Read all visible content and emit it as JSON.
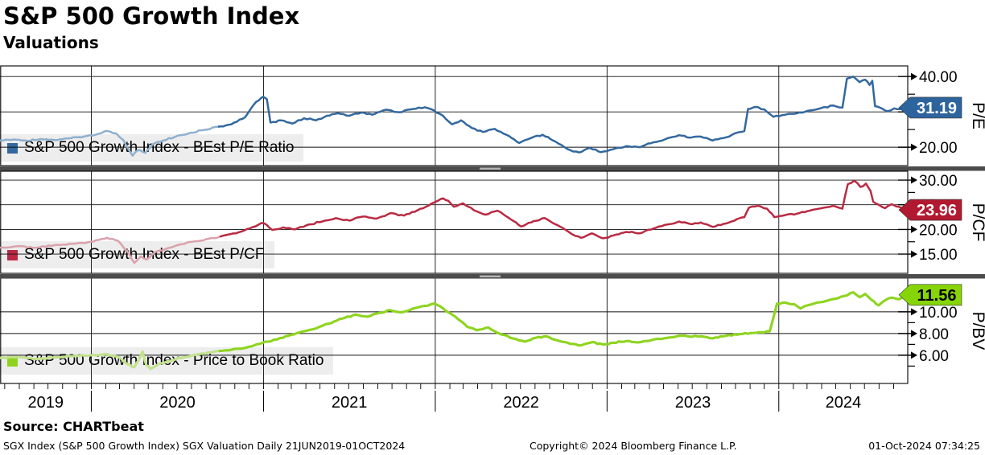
{
  "header": {
    "title": "S&P 500 Growth Index",
    "subtitle": "Valuations"
  },
  "footer": {
    "source": "Source: CHARTbeat",
    "meta_left": "SGX Index (S&P 500 Growth Index) SGX Valuation  Daily 21JUN2019-01OCT2024",
    "meta_center": "Copyright© 2024 Bloomberg Finance L.P.",
    "meta_right": "01-Oct-2024 07:34:25"
  },
  "chart_data": {
    "type": "line",
    "title": "S&P 500 Growth Index",
    "subtitle": "Valuations",
    "x_axis": {
      "range_start": "2019-06-21",
      "range_end": "2024-10-01",
      "year_labels": [
        "2019",
        "2020",
        "2021",
        "2022",
        "2023",
        "2024"
      ]
    },
    "panels": [
      {
        "id": "pe",
        "legend": "S&P 500 Growth Index - BEst P/E Ratio",
        "axis_title": "P/E",
        "last_value_label": "31.19",
        "last_value": 31.19,
        "line_color": "#33689e",
        "line_color_faded": "#8fb0cd",
        "badge_color": "#2d649e",
        "badge_text_color": "#ffffff",
        "ylim": [
          14.8,
          43.0
        ],
        "gridlines": [
          20,
          30,
          40
        ],
        "tick_labels": [
          {
            "v": 20,
            "label": "20.00"
          },
          {
            "v": 30,
            "label": "30.00"
          },
          {
            "v": 40,
            "label": "40.00"
          }
        ],
        "minor_ticks": [
          25,
          35
        ],
        "noise": 0.22,
        "series": [
          [
            0.0,
            21.9
          ],
          [
            0.015,
            22.2
          ],
          [
            0.03,
            21.8
          ],
          [
            0.045,
            22.3
          ],
          [
            0.06,
            22.0
          ],
          [
            0.075,
            22.5
          ],
          [
            0.09,
            22.8
          ],
          [
            0.105,
            23.5
          ],
          [
            0.118,
            24.6
          ],
          [
            0.128,
            23.9
          ],
          [
            0.136,
            22.0
          ],
          [
            0.146,
            17.6
          ],
          [
            0.152,
            19.2
          ],
          [
            0.16,
            18.4
          ],
          [
            0.168,
            20.8
          ],
          [
            0.18,
            21.9
          ],
          [
            0.195,
            23.2
          ],
          [
            0.21,
            24.1
          ],
          [
            0.225,
            24.9
          ],
          [
            0.24,
            25.8
          ],
          [
            0.255,
            26.5
          ],
          [
            0.27,
            28.5
          ],
          [
            0.282,
            32.8
          ],
          [
            0.29,
            34.3
          ],
          [
            0.294,
            33.6
          ],
          [
            0.298,
            27.0
          ],
          [
            0.31,
            27.6
          ],
          [
            0.322,
            26.7
          ],
          [
            0.335,
            28.2
          ],
          [
            0.348,
            27.6
          ],
          [
            0.36,
            28.9
          ],
          [
            0.372,
            29.6
          ],
          [
            0.385,
            28.9
          ],
          [
            0.398,
            29.8
          ],
          [
            0.41,
            29.2
          ],
          [
            0.425,
            30.6
          ],
          [
            0.44,
            29.9
          ],
          [
            0.455,
            30.8
          ],
          [
            0.468,
            31.3
          ],
          [
            0.478,
            30.4
          ],
          [
            0.488,
            28.9
          ],
          [
            0.498,
            26.5
          ],
          [
            0.508,
            27.6
          ],
          [
            0.52,
            25.4
          ],
          [
            0.532,
            24.3
          ],
          [
            0.545,
            25.2
          ],
          [
            0.558,
            23.5
          ],
          [
            0.572,
            21.2
          ],
          [
            0.585,
            22.6
          ],
          [
            0.598,
            23.5
          ],
          [
            0.612,
            21.6
          ],
          [
            0.625,
            19.5
          ],
          [
            0.638,
            18.5
          ],
          [
            0.65,
            19.8
          ],
          [
            0.662,
            18.6
          ],
          [
            0.675,
            19.4
          ],
          [
            0.69,
            20.3
          ],
          [
            0.705,
            20.0
          ],
          [
            0.72,
            21.4
          ],
          [
            0.735,
            22.5
          ],
          [
            0.748,
            23.4
          ],
          [
            0.76,
            22.7
          ],
          [
            0.772,
            23.0
          ],
          [
            0.785,
            21.9
          ],
          [
            0.8,
            22.8
          ],
          [
            0.812,
            24.1
          ],
          [
            0.82,
            24.6
          ],
          [
            0.824,
            30.8
          ],
          [
            0.832,
            31.4
          ],
          [
            0.842,
            30.7
          ],
          [
            0.852,
            28.6
          ],
          [
            0.865,
            29.2
          ],
          [
            0.878,
            29.6
          ],
          [
            0.892,
            30.4
          ],
          [
            0.905,
            31.1
          ],
          [
            0.918,
            31.8
          ],
          [
            0.928,
            31.2
          ],
          [
            0.933,
            39.4
          ],
          [
            0.94,
            40.0
          ],
          [
            0.947,
            38.4
          ],
          [
            0.953,
            39.1
          ],
          [
            0.958,
            37.6
          ],
          [
            0.961,
            38.8
          ],
          [
            0.964,
            31.6
          ],
          [
            0.972,
            30.9
          ],
          [
            0.978,
            30.2
          ],
          [
            0.985,
            31.0
          ],
          [
            0.992,
            30.8
          ],
          [
            1.0,
            31.19
          ]
        ]
      },
      {
        "id": "pcf",
        "legend": "S&P 500 Growth Index - BEst P/CF",
        "axis_title": "P/CF",
        "last_value_label": "23.96",
        "last_value": 23.96,
        "line_color": "#b92a42",
        "line_color_faded": "#dba2ac",
        "badge_color": "#b0192f",
        "badge_text_color": "#ffffff",
        "ylim": [
          11.1,
          31.8
        ],
        "gridlines": [
          15,
          20,
          25,
          30
        ],
        "tick_labels": [
          {
            "v": 15,
            "label": "15.00"
          },
          {
            "v": 20,
            "label": "20.00"
          },
          {
            "v": 25,
            "label": "25.00"
          },
          {
            "v": 30,
            "label": "30.00"
          }
        ],
        "minor_ticks": [
          17.5,
          22.5,
          27.5
        ],
        "noise": 0.16,
        "series": [
          [
            0.0,
            16.3
          ],
          [
            0.02,
            16.6
          ],
          [
            0.04,
            16.3
          ],
          [
            0.06,
            16.8
          ],
          [
            0.08,
            17.1
          ],
          [
            0.1,
            17.5
          ],
          [
            0.118,
            18.3
          ],
          [
            0.13,
            17.7
          ],
          [
            0.14,
            15.6
          ],
          [
            0.148,
            13.2
          ],
          [
            0.155,
            14.5
          ],
          [
            0.162,
            13.9
          ],
          [
            0.17,
            15.3
          ],
          [
            0.185,
            16.2
          ],
          [
            0.2,
            17.0
          ],
          [
            0.215,
            17.6
          ],
          [
            0.23,
            18.1
          ],
          [
            0.245,
            18.7
          ],
          [
            0.26,
            19.2
          ],
          [
            0.275,
            20.2
          ],
          [
            0.288,
            21.3
          ],
          [
            0.294,
            20.9
          ],
          [
            0.3,
            19.9
          ],
          [
            0.312,
            20.4
          ],
          [
            0.325,
            20.0
          ],
          [
            0.34,
            21.0
          ],
          [
            0.355,
            21.6
          ],
          [
            0.37,
            22.3
          ],
          [
            0.385,
            21.8
          ],
          [
            0.4,
            22.6
          ],
          [
            0.415,
            22.2
          ],
          [
            0.43,
            23.3
          ],
          [
            0.445,
            22.8
          ],
          [
            0.46,
            23.9
          ],
          [
            0.472,
            24.8
          ],
          [
            0.48,
            25.6
          ],
          [
            0.488,
            26.3
          ],
          [
            0.494,
            25.8
          ],
          [
            0.5,
            24.6
          ],
          [
            0.51,
            25.3
          ],
          [
            0.522,
            23.9
          ],
          [
            0.535,
            23.0
          ],
          [
            0.548,
            23.8
          ],
          [
            0.56,
            22.4
          ],
          [
            0.574,
            20.6
          ],
          [
            0.588,
            21.7
          ],
          [
            0.6,
            22.3
          ],
          [
            0.614,
            20.9
          ],
          [
            0.628,
            19.3
          ],
          [
            0.64,
            18.3
          ],
          [
            0.652,
            19.2
          ],
          [
            0.664,
            18.2
          ],
          [
            0.676,
            18.8
          ],
          [
            0.69,
            19.5
          ],
          [
            0.705,
            19.2
          ],
          [
            0.72,
            20.2
          ],
          [
            0.735,
            21.0
          ],
          [
            0.748,
            21.6
          ],
          [
            0.76,
            21.1
          ],
          [
            0.772,
            21.4
          ],
          [
            0.785,
            20.5
          ],
          [
            0.8,
            21.2
          ],
          [
            0.812,
            22.1
          ],
          [
            0.82,
            22.5
          ],
          [
            0.825,
            24.4
          ],
          [
            0.835,
            24.8
          ],
          [
            0.845,
            24.2
          ],
          [
            0.853,
            22.5
          ],
          [
            0.865,
            22.9
          ],
          [
            0.878,
            23.2
          ],
          [
            0.892,
            23.8
          ],
          [
            0.905,
            24.3
          ],
          [
            0.918,
            24.8
          ],
          [
            0.928,
            24.2
          ],
          [
            0.934,
            29.2
          ],
          [
            0.941,
            29.9
          ],
          [
            0.948,
            28.6
          ],
          [
            0.954,
            29.3
          ],
          [
            0.959,
            27.8
          ],
          [
            0.962,
            25.6
          ],
          [
            0.968,
            25.0
          ],
          [
            0.975,
            24.3
          ],
          [
            0.982,
            25.1
          ],
          [
            0.99,
            24.6
          ],
          [
            1.0,
            23.96
          ]
        ]
      },
      {
        "id": "pbv",
        "legend": "S&P 500 Growth Index - Price to Book Ratio",
        "axis_title": "P/BV",
        "last_value_label": "11.56",
        "last_value": 11.56,
        "line_color": "#8ed41f",
        "line_color_faded": "#c2e18c",
        "badge_color": "#86d508",
        "badge_text_color": "#000000",
        "ylim": [
          3.4,
          13.1
        ],
        "gridlines": [
          6,
          8,
          10
        ],
        "tick_labels": [
          {
            "v": 6,
            "label": "6.00"
          },
          {
            "v": 8,
            "label": "8.00"
          },
          {
            "v": 10,
            "label": "10.00"
          }
        ],
        "minor_ticks": [
          5,
          7,
          9,
          11
        ],
        "noise": 0.07,
        "series": [
          [
            0.0,
            5.75
          ],
          [
            0.02,
            5.85
          ],
          [
            0.04,
            5.65
          ],
          [
            0.06,
            5.8
          ],
          [
            0.08,
            5.9
          ],
          [
            0.1,
            6.0
          ],
          [
            0.118,
            6.1
          ],
          [
            0.13,
            5.85
          ],
          [
            0.14,
            5.2
          ],
          [
            0.148,
            4.9
          ],
          [
            0.153,
            5.6
          ],
          [
            0.157,
            6.35
          ],
          [
            0.161,
            5.1
          ],
          [
            0.166,
            4.75
          ],
          [
            0.175,
            5.2
          ],
          [
            0.19,
            5.55
          ],
          [
            0.205,
            5.85
          ],
          [
            0.22,
            6.1
          ],
          [
            0.235,
            6.3
          ],
          [
            0.25,
            6.45
          ],
          [
            0.265,
            6.6
          ],
          [
            0.28,
            6.9
          ],
          [
            0.292,
            7.25
          ],
          [
            0.305,
            7.45
          ],
          [
            0.318,
            7.8
          ],
          [
            0.33,
            8.1
          ],
          [
            0.342,
            8.35
          ],
          [
            0.355,
            8.7
          ],
          [
            0.368,
            9.1
          ],
          [
            0.38,
            9.45
          ],
          [
            0.392,
            9.75
          ],
          [
            0.405,
            9.55
          ],
          [
            0.418,
            9.9
          ],
          [
            0.43,
            10.15
          ],
          [
            0.442,
            9.95
          ],
          [
            0.455,
            10.3
          ],
          [
            0.468,
            10.55
          ],
          [
            0.478,
            10.75
          ],
          [
            0.486,
            10.45
          ],
          [
            0.495,
            9.9
          ],
          [
            0.505,
            9.3
          ],
          [
            0.515,
            8.6
          ],
          [
            0.525,
            8.3
          ],
          [
            0.538,
            8.55
          ],
          [
            0.55,
            8.0
          ],
          [
            0.565,
            7.55
          ],
          [
            0.578,
            7.25
          ],
          [
            0.59,
            7.6
          ],
          [
            0.602,
            7.75
          ],
          [
            0.615,
            7.35
          ],
          [
            0.628,
            7.05
          ],
          [
            0.64,
            6.9
          ],
          [
            0.652,
            7.2
          ],
          [
            0.664,
            7.0
          ],
          [
            0.676,
            7.15
          ],
          [
            0.69,
            7.3
          ],
          [
            0.705,
            7.2
          ],
          [
            0.72,
            7.45
          ],
          [
            0.735,
            7.6
          ],
          [
            0.748,
            7.8
          ],
          [
            0.76,
            7.7
          ],
          [
            0.772,
            7.75
          ],
          [
            0.785,
            7.55
          ],
          [
            0.8,
            7.8
          ],
          [
            0.815,
            7.95
          ],
          [
            0.83,
            8.05
          ],
          [
            0.848,
            8.2
          ],
          [
            0.856,
            10.75
          ],
          [
            0.865,
            10.85
          ],
          [
            0.875,
            10.7
          ],
          [
            0.882,
            10.3
          ],
          [
            0.89,
            10.6
          ],
          [
            0.9,
            10.85
          ],
          [
            0.91,
            11.0
          ],
          [
            0.92,
            11.2
          ],
          [
            0.93,
            11.45
          ],
          [
            0.94,
            11.8
          ],
          [
            0.947,
            11.35
          ],
          [
            0.953,
            11.65
          ],
          [
            0.96,
            11.1
          ],
          [
            0.968,
            10.6
          ],
          [
            0.975,
            11.05
          ],
          [
            0.982,
            11.3
          ],
          [
            0.99,
            11.15
          ],
          [
            1.0,
            11.56
          ]
        ]
      }
    ]
  }
}
